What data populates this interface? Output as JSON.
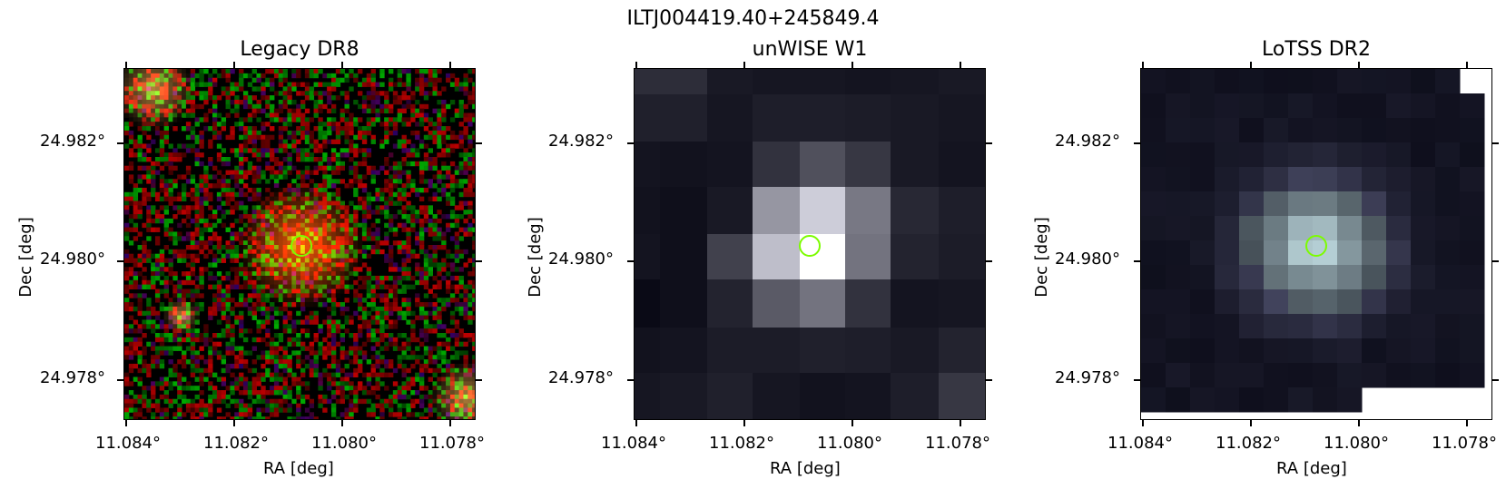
{
  "figure": {
    "suptitle": "ILTJ004419.40+245849.4"
  },
  "panels": [
    {
      "title": "Legacy DR8",
      "xlabel": "RA [deg]",
      "ylabel": "Dec [deg]",
      "xticks": [
        "11.084°",
        "11.082°",
        "11.080°",
        "11.078°"
      ],
      "yticks": [
        "24.982°",
        "24.980°",
        "24.978°"
      ],
      "marker_icon": "circle-marker-icon",
      "marker_color": "#7cfc00"
    },
    {
      "title": "unWISE W1",
      "xlabel": "RA [deg]",
      "ylabel": "Dec [deg]",
      "xticks": [
        "11.084°",
        "11.082°",
        "11.080°",
        "11.078°"
      ],
      "yticks": [
        "24.982°",
        "24.980°",
        "24.978°"
      ],
      "marker_icon": "circle-marker-icon",
      "marker_color": "#7cfc00"
    },
    {
      "title": "LoTSS DR2",
      "xlabel": "RA [deg]",
      "ylabel": "Dec [deg]",
      "xticks": [
        "11.084°",
        "11.082°",
        "11.080°",
        "11.078°"
      ],
      "yticks": [
        "24.982°",
        "24.980°",
        "24.978°"
      ],
      "marker_icon": "circle-marker-icon",
      "marker_color": "#7cfc00"
    }
  ]
}
